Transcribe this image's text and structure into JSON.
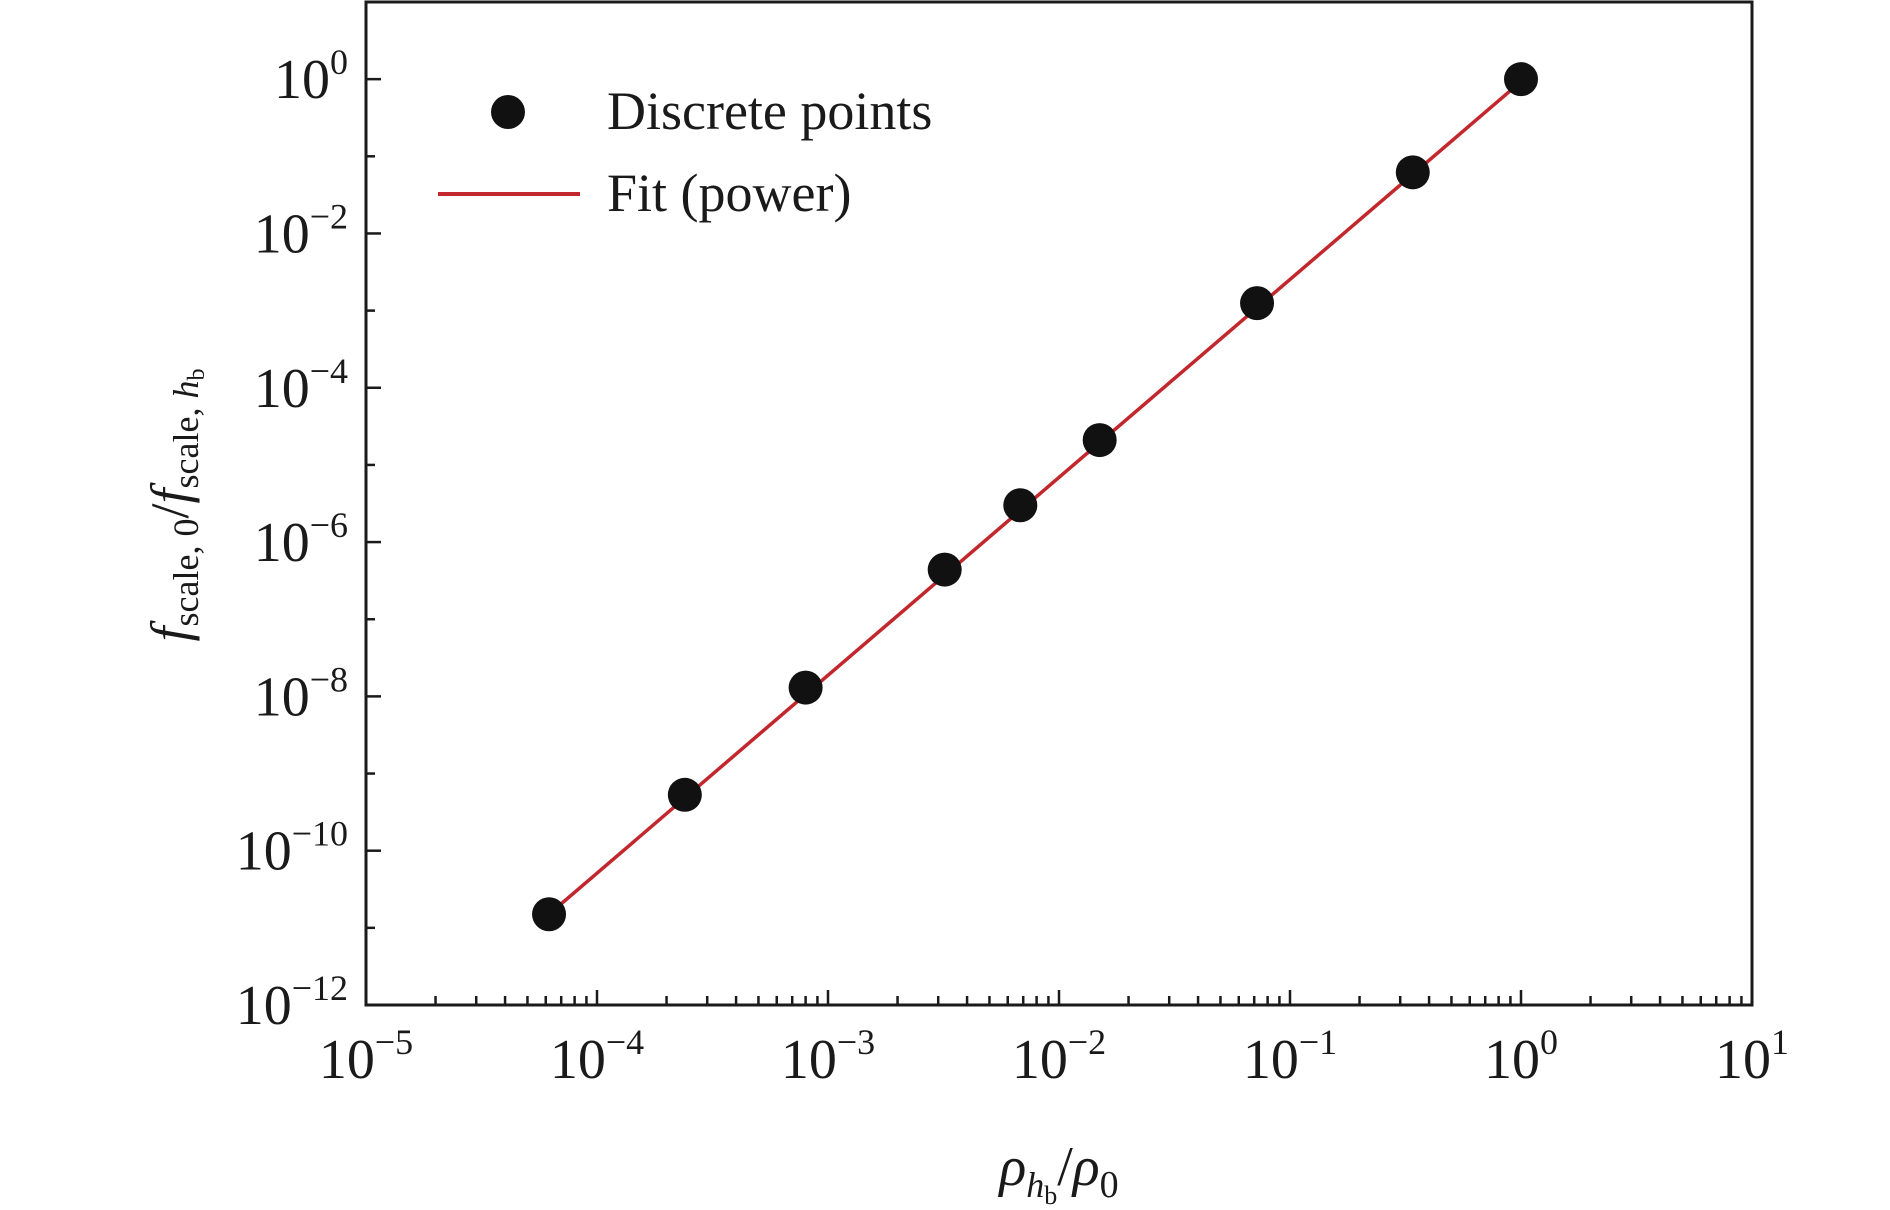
{
  "chart_data": {
    "type": "scatter",
    "xscale": "log",
    "yscale": "log",
    "xlim": [
      1e-05,
      10
    ],
    "ylim": [
      1e-12,
      10
    ],
    "x_tick_exponents": [
      -5,
      -4,
      -3,
      -2,
      -1,
      0,
      1
    ],
    "y_tick_exponents": [
      -12,
      -10,
      -8,
      -6,
      -4,
      -2,
      0
    ],
    "tick_base": "10",
    "xlabel": {
      "rho": "ρ",
      "sub": "h",
      "subsub": "b",
      "slash": "/",
      "rho0": "ρ",
      "sub0": "0"
    },
    "ylabel": {
      "f1": "f",
      "sub1": "scale, 0",
      "slash": "/",
      "f2": "f",
      "sub2a": "scale, ",
      "sub2h": "h",
      "sub2b": "b"
    },
    "legend_position": "top-left",
    "grid": false,
    "series": [
      {
        "name": "Discrete points",
        "kind": "scatter",
        "color": "#111111",
        "x": [
          6.2e-05,
          0.00024,
          0.0008,
          0.0032,
          0.0068,
          0.015,
          0.072,
          0.34,
          1.0
        ],
        "y": [
          1.5e-11,
          5.3e-10,
          1.3e-08,
          4.4e-07,
          3e-06,
          2.1e-05,
          0.00125,
          0.062,
          1.0
        ]
      },
      {
        "name": "Fit (power)",
        "kind": "line",
        "color": "#c1272d",
        "x": [
          6.2e-05,
          1.0
        ],
        "y": [
          1.5e-11,
          0.93
        ]
      }
    ]
  }
}
